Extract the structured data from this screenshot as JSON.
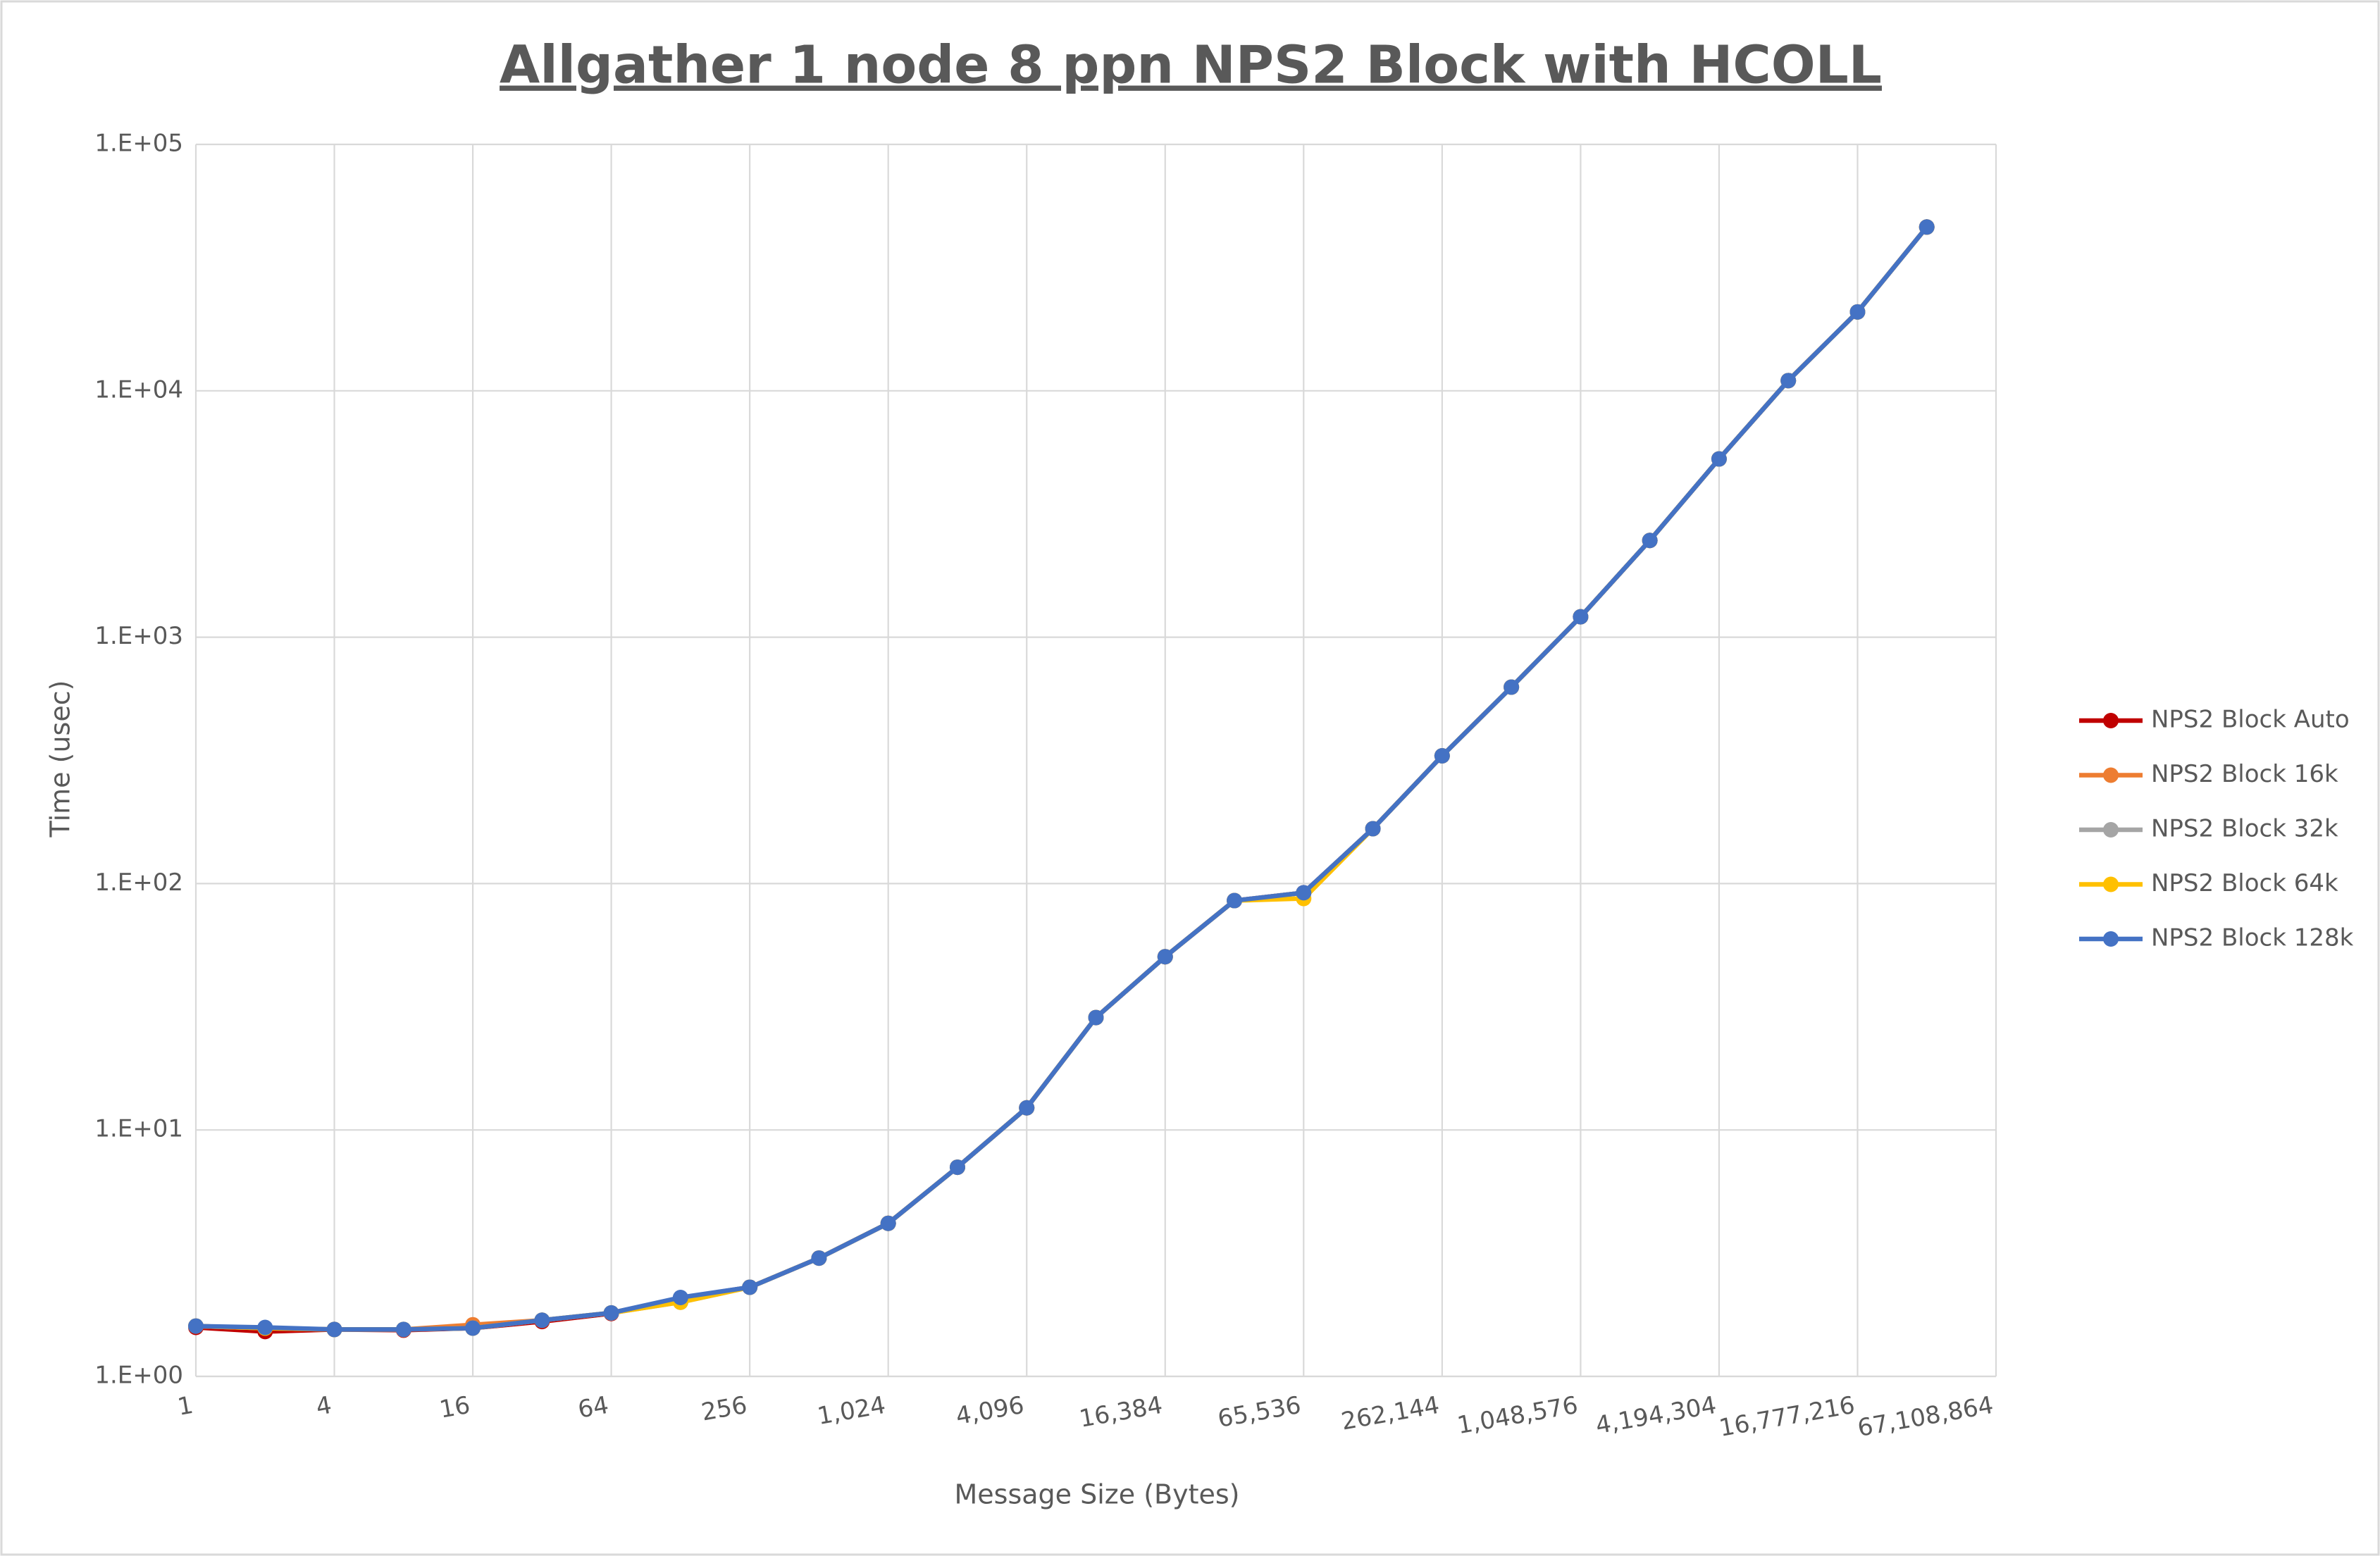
{
  "chart_data": {
    "type": "line",
    "title": "Allgather 1 node 8 ppn NPS2 Block with HCOLL",
    "x_label": "Message Size (Bytes)",
    "y_label": "Time (usec)",
    "x": [
      1,
      2,
      4,
      8,
      16,
      32,
      64,
      128,
      256,
      512,
      1024,
      2048,
      4096,
      8192,
      16384,
      32768,
      65536,
      131072,
      262144,
      524288,
      1048576,
      2097152,
      4194304,
      8388608,
      16777216,
      33554432
    ],
    "series": [
      {
        "name": "NPS2 Block Auto",
        "color": "#c00000",
        "values": [
          1.58,
          1.52,
          1.55,
          1.54,
          1.57,
          1.67,
          1.8,
          2.08,
          2.3,
          3.02,
          4.18,
          7.06,
          12.3,
          28.6,
          50.5,
          85.3,
          91.8,
          167,
          330,
          627,
          1210,
          2470,
          5290,
          11000,
          20900,
          46200
        ]
      },
      {
        "name": "NPS2 Block 16k",
        "color": "#ed7d31",
        "values": [
          1.6,
          1.57,
          1.55,
          1.55,
          1.62,
          1.69,
          1.81,
          2.08,
          2.3,
          3.02,
          4.18,
          7.06,
          12.3,
          28.6,
          50.5,
          85.3,
          91.8,
          167,
          330,
          627,
          1210,
          2470,
          5290,
          11000,
          20900,
          46200
        ]
      },
      {
        "name": "NPS2 Block 32k",
        "color": "#a5a5a5",
        "values": [
          1.6,
          1.57,
          1.55,
          1.55,
          1.57,
          1.69,
          1.81,
          2.0,
          2.3,
          3.02,
          4.18,
          7.06,
          12.3,
          28.6,
          50.5,
          85.3,
          91.8,
          167,
          330,
          627,
          1210,
          2470,
          5290,
          11000,
          20900,
          46200
        ]
      },
      {
        "name": "NPS2 Block 64k",
        "color": "#ffc000",
        "values": [
          1.6,
          1.57,
          1.55,
          1.55,
          1.57,
          1.69,
          1.81,
          2.0,
          2.3,
          3.02,
          4.18,
          7.06,
          12.3,
          28.6,
          50.5,
          85.3,
          87,
          167,
          330,
          627,
          1210,
          2470,
          5290,
          11000,
          20900,
          46200
        ]
      },
      {
        "name": "NPS2 Block 128k",
        "color": "#4472c4",
        "values": [
          1.6,
          1.58,
          1.55,
          1.55,
          1.57,
          1.69,
          1.81,
          2.09,
          2.3,
          3.02,
          4.18,
          7.06,
          12.3,
          28.6,
          50.5,
          85.3,
          91.8,
          167,
          330,
          627,
          1210,
          2470,
          5290,
          11000,
          20900,
          46200
        ]
      }
    ],
    "xscale": "log",
    "yscale": "log",
    "xlim": [
      1,
      67108864
    ],
    "xticks": [
      1,
      4,
      16,
      64,
      256,
      {
        "value": 1024,
        "label": "1,024"
      },
      {
        "value": 4096,
        "label": "4,096"
      },
      {
        "value": 16384,
        "label": "16,384"
      },
      {
        "value": 65536,
        "label": "65,536"
      },
      {
        "value": 262144,
        "label": "262,144"
      },
      {
        "value": 1048576,
        "label": "1,048,576"
      },
      {
        "value": 4194304,
        "label": "4,194,304"
      },
      {
        "value": 16777216,
        "label": "16,777,216"
      },
      {
        "value": 67108864,
        "label": "67,108,864"
      }
    ],
    "ylim": [
      1,
      100000
    ],
    "yticks": [
      {
        "value": 1,
        "label": "1.E+00"
      },
      {
        "value": 10,
        "label": "1.E+01"
      },
      {
        "value": 100,
        "label": "1.E+02"
      },
      {
        "value": 1000,
        "label": "1.E+03"
      },
      {
        "value": 10000,
        "label": "1.E+04"
      },
      {
        "value": 100000,
        "label": "1.E+05"
      }
    ],
    "grid": true,
    "legend": "right"
  }
}
